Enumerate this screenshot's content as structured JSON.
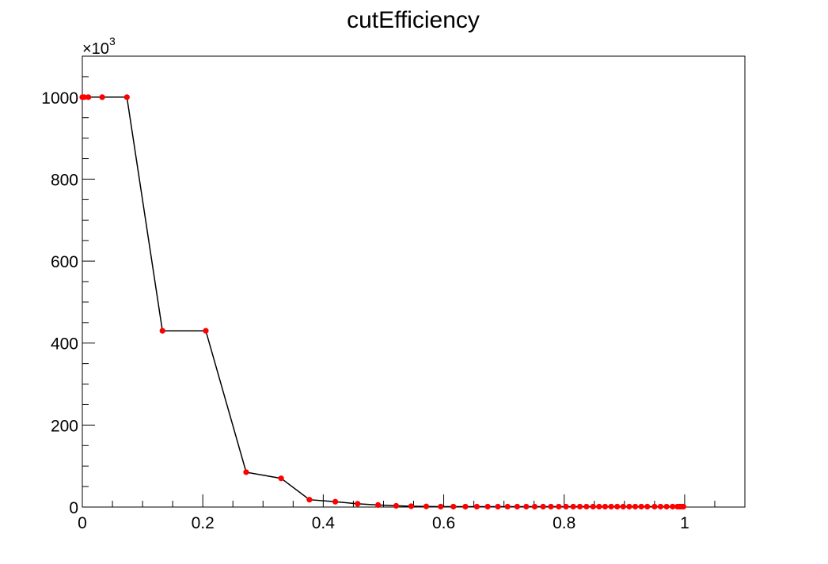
{
  "chart_data": {
    "type": "line",
    "title": "cutEfficiency",
    "xlabel": "",
    "ylabel": "",
    "xlim": [
      0,
      1.1
    ],
    "ylim": [
      0,
      1100
    ],
    "y_multiplier": {
      "base": "×10",
      "exponent": "3"
    },
    "x_ticks": [
      {
        "value": 0,
        "label": "0"
      },
      {
        "value": 0.2,
        "label": "0.2"
      },
      {
        "value": 0.4,
        "label": "0.4"
      },
      {
        "value": 0.6,
        "label": "0.6"
      },
      {
        "value": 0.8,
        "label": "0.8"
      },
      {
        "value": 1.0,
        "label": "1"
      }
    ],
    "y_ticks": [
      {
        "value": 0,
        "label": "0"
      },
      {
        "value": 200,
        "label": "200"
      },
      {
        "value": 400,
        "label": "400"
      },
      {
        "value": 600,
        "label": "600"
      },
      {
        "value": 800,
        "label": "800"
      },
      {
        "value": 1000,
        "label": "1000"
      }
    ],
    "grid": false,
    "line_color": "#000000",
    "marker_color": "#ff0000",
    "series": [
      {
        "x": [
          0.0,
          0.003,
          0.01,
          0.033,
          0.074,
          0.133,
          0.205,
          0.272,
          0.33,
          0.377,
          0.42,
          0.457,
          0.491,
          0.521,
          0.546,
          0.571,
          0.595,
          0.616,
          0.636,
          0.655,
          0.673,
          0.69,
          0.706,
          0.722,
          0.737,
          0.751,
          0.765,
          0.778,
          0.791,
          0.803,
          0.815,
          0.826,
          0.837,
          0.848,
          0.858,
          0.868,
          0.878,
          0.888,
          0.898,
          0.908,
          0.918,
          0.928,
          0.938,
          0.95,
          0.96,
          0.97,
          0.98,
          0.988,
          0.992,
          0.995,
          0.998
        ],
        "y": [
          1000,
          1000,
          1000,
          1000,
          1000,
          430,
          430,
          85,
          70,
          18,
          13,
          8,
          5,
          3,
          2,
          1.5,
          1,
          1,
          1,
          1,
          1,
          1,
          1,
          1,
          1,
          1,
          1,
          1,
          1,
          1,
          1,
          1,
          1,
          1,
          1,
          1,
          1,
          1,
          1,
          1,
          1,
          1,
          1,
          1,
          1,
          1,
          1,
          1,
          1,
          1,
          1
        ]
      }
    ]
  }
}
